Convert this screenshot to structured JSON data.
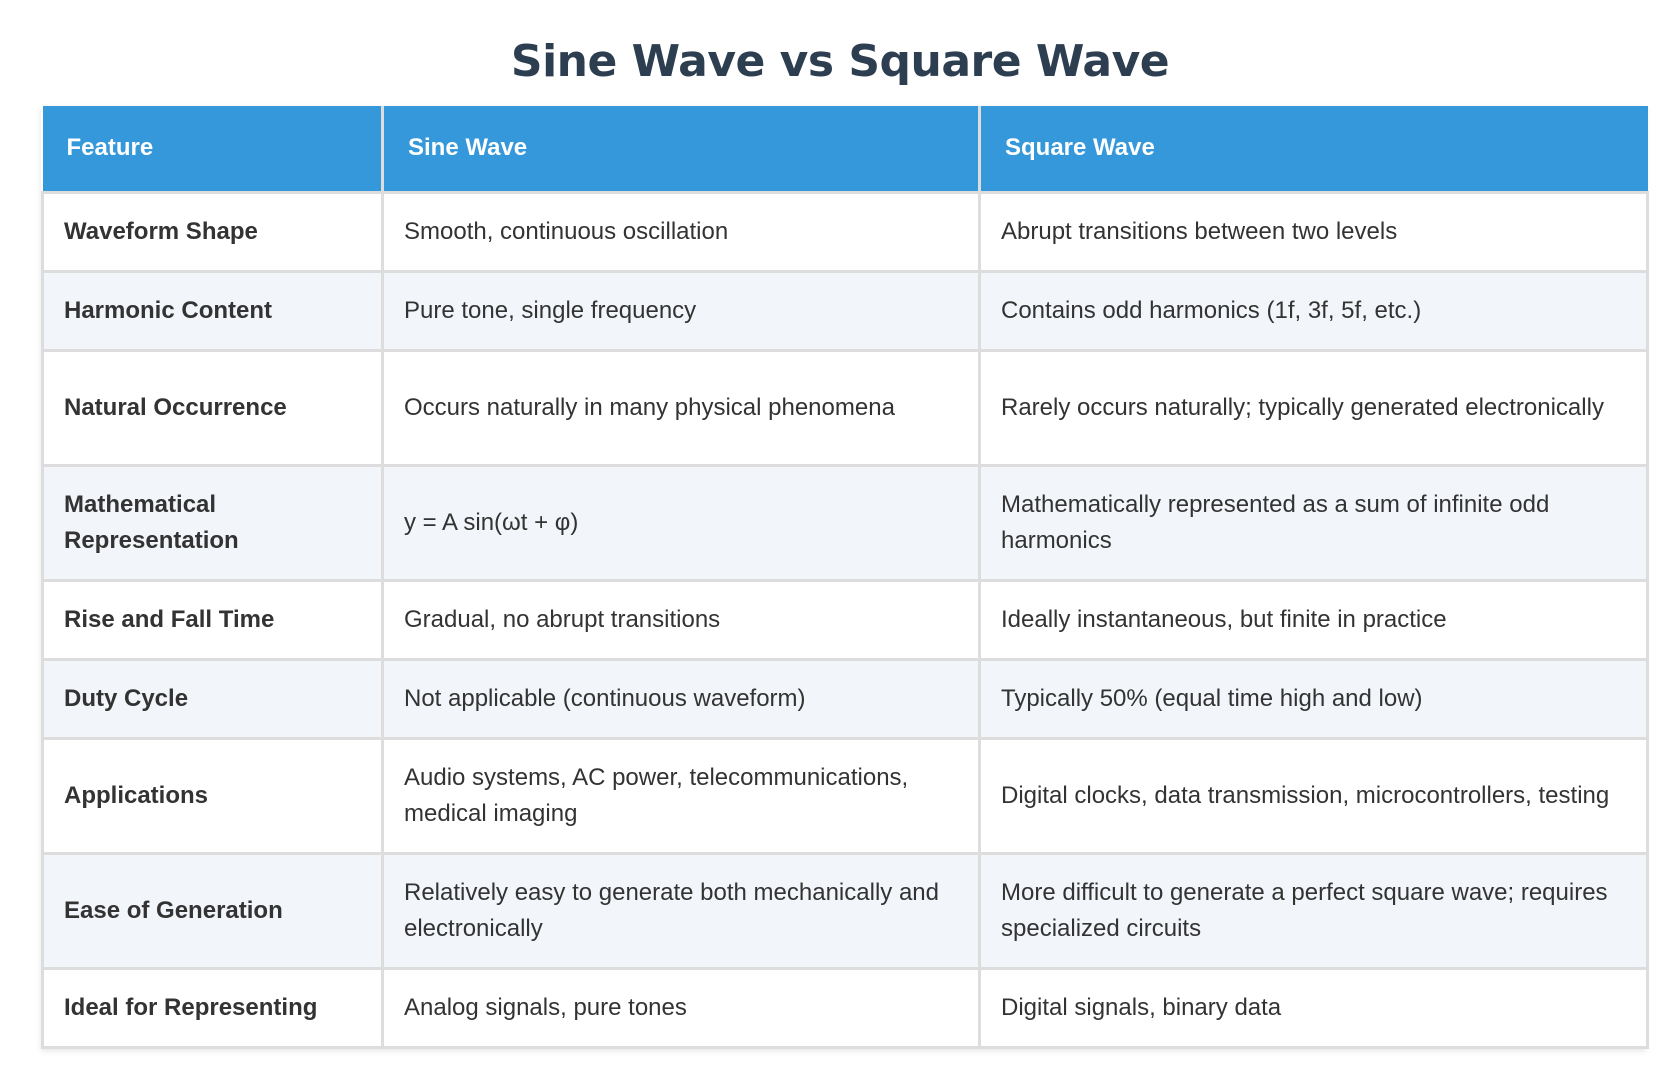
{
  "title": "Sine Wave vs Square Wave",
  "table": {
    "headers": [
      "Feature",
      "Sine Wave",
      "Square Wave"
    ],
    "rows": [
      {
        "feature": "Waveform Shape",
        "sine": "Smooth, continuous oscillation",
        "square": "Abrupt transitions between two levels"
      },
      {
        "feature": "Harmonic Content",
        "sine": "Pure tone, single frequency",
        "square": "Contains odd harmonics (1f, 3f, 5f, etc.)"
      },
      {
        "feature": "Natural Occurrence",
        "sine": "Occurs naturally in many physical phenomena",
        "square": "Rarely occurs naturally; typically generated electronically"
      },
      {
        "feature": "Mathematical Representation",
        "sine": "y = A sin(ωt + φ)",
        "square": "Mathematically represented as a sum of infinite odd harmonics"
      },
      {
        "feature": "Rise and Fall Time",
        "sine": "Gradual, no abrupt transitions",
        "square": "Ideally instantaneous, but finite in practice"
      },
      {
        "feature": "Duty Cycle",
        "sine": "Not applicable (continuous waveform)",
        "square": "Typically 50% (equal time high and low)"
      },
      {
        "feature": "Applications",
        "sine": "Audio systems, AC power, telecommunications, medical imaging",
        "square": "Digital clocks, data transmission, microcontrollers, testing"
      },
      {
        "feature": "Ease of Generation",
        "sine": "Relatively easy to generate both mechanically and electronically",
        "square": "More difficult to generate a perfect square wave; requires specialized circuits"
      },
      {
        "feature": "Ideal for Representing",
        "sine": "Analog signals, pure tones",
        "square": "Digital signals, binary data"
      }
    ]
  },
  "colors": {
    "title": "#2c3e50",
    "header_bg": "#3498db",
    "header_text": "#ffffff",
    "row_alt_bg": "#f2f5f9",
    "border": "#dddddd"
  }
}
